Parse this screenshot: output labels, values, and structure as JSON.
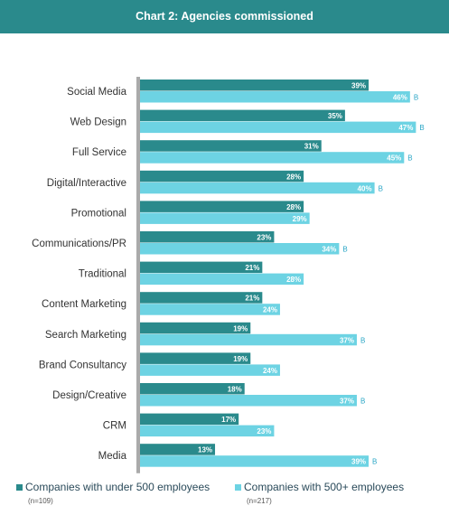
{
  "header": {
    "title": "Chart 2: Agencies commissioned"
  },
  "colors": {
    "header": "#2a8a8c",
    "series1": "#2a8a8c",
    "series2": "#6dd3e3",
    "axis": "#aaaaaa",
    "label": "#333333",
    "flag": "#2aa6c6"
  },
  "legend": {
    "s1_label": "Companies with under 500 employees",
    "s1_n": "(n=109)",
    "s2_label": "Companies with 500+ employees",
    "s2_n": "(n=217)"
  },
  "chart_data": {
    "type": "bar",
    "orientation": "horizontal",
    "title": "Chart 2: Agencies commissioned",
    "categories": [
      "Social Media",
      "Web Design",
      "Full Service",
      "Digital/Interactive",
      "Promotional",
      "Communications/PR",
      "Traditional",
      "Content Marketing",
      "Search Marketing",
      "Brand Consultancy",
      "Design/Creative",
      "CRM",
      "Media"
    ],
    "series": [
      {
        "name": "Companies with under 500 employees",
        "values": [
          39,
          35,
          31,
          28,
          28,
          23,
          21,
          21,
          19,
          19,
          18,
          17,
          13
        ]
      },
      {
        "name": "Companies with 500+ employees",
        "values": [
          46,
          47,
          45,
          40,
          29,
          34,
          28,
          24,
          37,
          24,
          37,
          23,
          39
        ]
      }
    ],
    "significance_flags": [
      "B",
      "B",
      "B",
      "B",
      "",
      "B",
      "",
      "",
      "B",
      "",
      "B",
      "",
      "B"
    ],
    "value_suffix": "%",
    "xlim": [
      0,
      50
    ],
    "grid": false,
    "legend_position": "bottom"
  }
}
